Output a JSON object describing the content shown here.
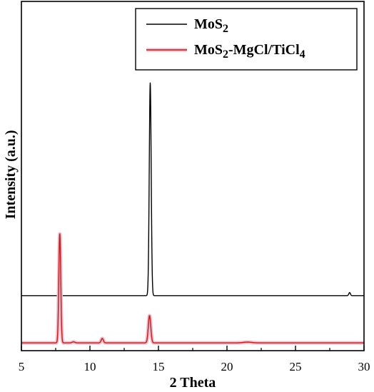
{
  "chart_data": {
    "type": "line",
    "title": "",
    "xlabel": "2 Theta",
    "ylabel": "Intensity (a.u.)",
    "xlim": [
      5,
      30
    ],
    "xticks": [
      5,
      10,
      15,
      20,
      25,
      30
    ],
    "xtick_labels": [
      "5",
      "10",
      "15",
      "20",
      "25",
      "30"
    ],
    "y_tick_labels": false,
    "ylim": [
      0,
      100
    ],
    "grid": false,
    "legend_position": "top-right",
    "series": [
      {
        "name": "MoS",
        "name_sub": "2",
        "name_rest": "",
        "name_sub2": "",
        "color": "#000000",
        "baseline": 19,
        "peaks": [
          {
            "x": 14.4,
            "height": 82,
            "width": 0.07
          },
          {
            "x": 28.95,
            "height": 1.2,
            "width": 0.06
          }
        ]
      },
      {
        "name": "MoS",
        "name_sub": "2",
        "name_rest": "-MgCl/TiCl",
        "name_sub2": "4",
        "color": "#b22222",
        "highlight": "#f4b8c6",
        "baseline": 0.8,
        "peaks": [
          {
            "x": 7.8,
            "height": 42,
            "width": 0.07
          },
          {
            "x": 10.9,
            "height": 1.7,
            "width": 0.08
          },
          {
            "x": 14.35,
            "height": 10.5,
            "width": 0.09
          },
          {
            "x": 8.8,
            "height": 0.4,
            "width": 0.1
          },
          {
            "x": 21.5,
            "height": 0.3,
            "width": 0.3
          }
        ]
      }
    ]
  }
}
